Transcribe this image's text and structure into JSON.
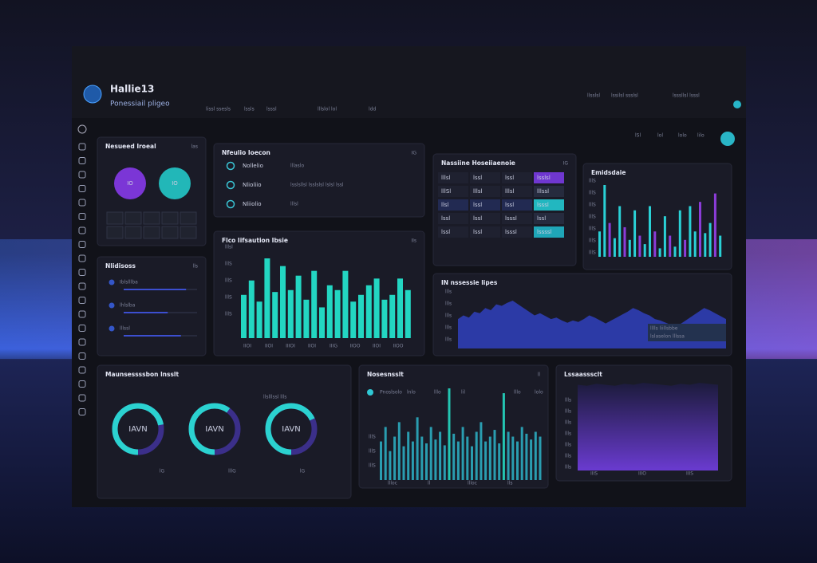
{
  "header": {
    "title": "Hallie13",
    "subtitle": "Ponessiail pligeo",
    "nav": [
      "lissl ssesls",
      "lssls",
      "lsssl",
      "lllslol lol",
      "ldd"
    ],
    "right": [
      "llsslsl",
      "lssilsl ssslsl",
      "lsssllsl lsssl"
    ]
  },
  "toolbar": [
    "lSl",
    "lol",
    "lolo",
    "lilo"
  ],
  "panels": {
    "rings": {
      "title": "Nesueed Iroeal",
      "badge": "las",
      "labels": [
        "IO",
        "IO"
      ]
    },
    "list": {
      "title": "Nfeulio Ioecon",
      "badge": "IG",
      "rows": [
        {
          "label": "Nollelio",
          "value": "lllaslo"
        },
        {
          "label": "Nlioliio",
          "value": "lsslsllsl lsslslsl lslsl lssl"
        },
        {
          "label": "Nliiolio",
          "value": "lllsl"
        }
      ]
    },
    "bars": {
      "title": "Flco Iifsaution Ibsie",
      "badge": "IIs",
      "ylabels": [
        "lllsl",
        "lllS",
        "lllS",
        "lllS",
        "lllS"
      ],
      "xlabels": [
        "IIOI",
        "IIOI",
        "IIIOI",
        "IIOI",
        "IIIG",
        "IIOO",
        "IIOI",
        "IIOO"
      ],
      "values": [
        45,
        60,
        38,
        83,
        48,
        75,
        50,
        65,
        40,
        70,
        32,
        55,
        50,
        70,
        38,
        45,
        55,
        62,
        40,
        45,
        62,
        50
      ]
    },
    "table": {
      "title": "Nassiine Hoseiiaenoie",
      "badge": "IG",
      "rows": [
        [
          "lllsl",
          "lssl",
          "lssl",
          "lsslsl"
        ],
        [
          "lllSl",
          "lllsl",
          "lllsl",
          "lllssl"
        ],
        [
          "llsl",
          "lssl",
          "lssl",
          "lsssl"
        ],
        [
          "lssl",
          "lssl",
          "lsssl",
          "lssl"
        ],
        [
          "lssl",
          "lssl",
          "lsssl",
          "lssssl"
        ]
      ]
    },
    "thin": {
      "title": "Emidsdaie",
      "ylabels": [
        "lllS",
        "lllS",
        "lllS",
        "lllS",
        "lllS",
        "lllS",
        "lllS"
      ],
      "values": [
        30,
        85,
        40,
        22,
        60,
        35,
        20,
        55,
        25,
        15,
        60,
        30,
        10,
        48,
        25,
        12,
        55,
        20,
        60,
        30,
        65,
        28,
        40,
        75,
        25
      ]
    },
    "area": {
      "title": "IN nssessie lipes",
      "ylabels": [
        "llls",
        "llls",
        "llls",
        "llls",
        "llls"
      ],
      "legend": [
        "lllls liillsbbe",
        "lslaselon lllssa"
      ],
      "values": [
        40,
        45,
        42,
        50,
        48,
        55,
        52,
        60,
        58,
        62,
        65,
        60,
        55,
        50,
        45,
        48,
        44,
        40,
        42,
        38,
        35,
        38,
        36,
        40,
        45,
        42,
        38,
        34,
        38,
        42,
        46,
        50,
        55,
        52,
        48,
        45,
        40,
        38,
        35,
        32,
        30,
        35,
        40,
        45,
        50,
        55,
        52,
        48,
        44,
        40
      ]
    },
    "progress": {
      "title": "Nlidisoss",
      "badge": "lls",
      "rows": [
        {
          "label": "Iblslllba",
          "value": 85
        },
        {
          "label": "lhlslba",
          "value": 60
        },
        {
          "label": "lllssl",
          "value": 78
        }
      ]
    },
    "donuts": {
      "title": "Maunsessssbon lnsslt",
      "note": "llslllssl llls",
      "items": [
        {
          "label": "IAVN",
          "value": 72,
          "caption": "lG"
        },
        {
          "label": "IAVN",
          "value": 60,
          "caption": "lllG"
        },
        {
          "label": "IAVN",
          "value": 68,
          "caption": "lG"
        }
      ]
    },
    "mixed": {
      "title": "Nosesnsslt",
      "badge": "ll",
      "labels": [
        "Pnoslsolo",
        "lnlo",
        "lllo",
        "lil",
        "lllo",
        "lolo",
        "Fllo"
      ],
      "ylabels": [
        "lllS",
        "lllS",
        "lllS"
      ],
      "xlabels": [
        "llloc",
        "ll",
        "llloc",
        "lls"
      ],
      "values": [
        40,
        55,
        30,
        45,
        60,
        35,
        50,
        40,
        65,
        45,
        38,
        55,
        42,
        50,
        36,
        95,
        48,
        40,
        55,
        45,
        35,
        50,
        60,
        40,
        45,
        52,
        38,
        90,
        50,
        45,
        40,
        55,
        48,
        42,
        50,
        45
      ]
    },
    "purple": {
      "title": "Lssaasssclt",
      "ylabels": [
        "llls",
        "llls",
        "llls",
        "llls",
        "llls",
        "llls",
        "llls"
      ],
      "xlabels": [
        "IIIS",
        "IIIO",
        "IIIS"
      ],
      "values": [
        85,
        84,
        86,
        85,
        84,
        86,
        85,
        87,
        86,
        85,
        84,
        86,
        85,
        87,
        86,
        85
      ]
    }
  }
}
